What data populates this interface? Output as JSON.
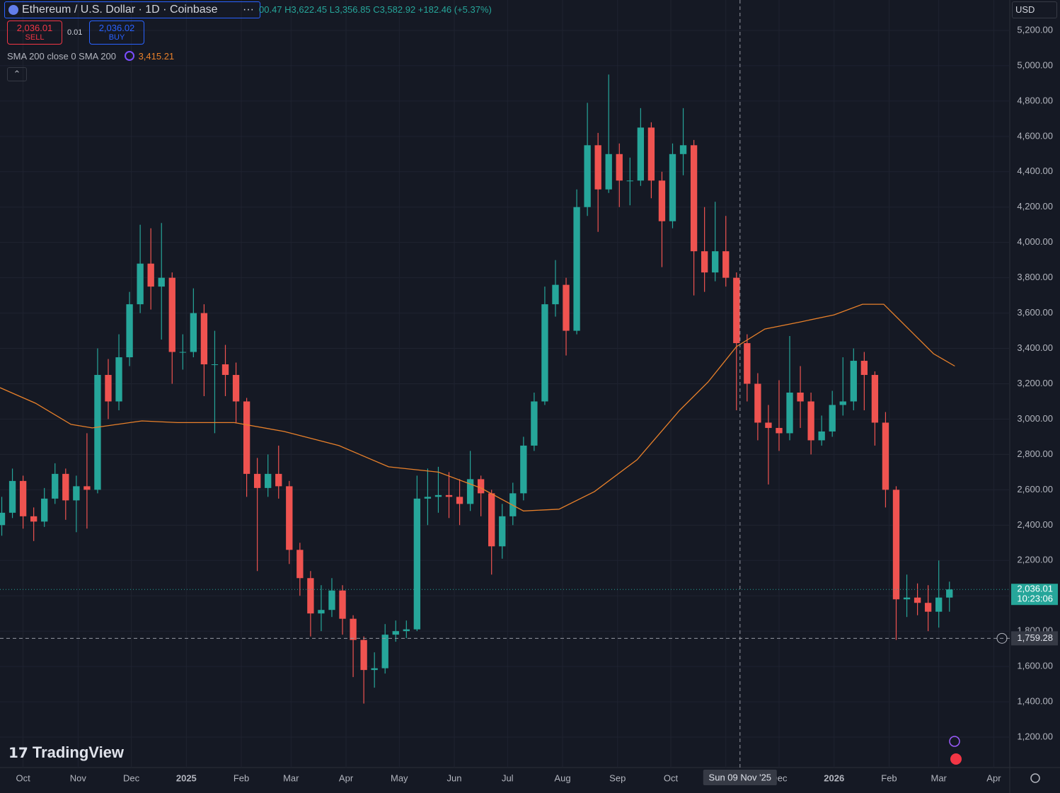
{
  "header": {
    "title": "Ethereum / U.S. Dollar · 1D · Coinbase",
    "ohlc": "00.47 H3,622.45 L3,356.85 C3,582.92 +182.46 (+5.37%)",
    "sell_price": "2,036.01",
    "sell_label": "SELL",
    "spread": "0.01",
    "buy_price": "2,036.02",
    "buy_label": "BUY",
    "indicator": "SMA 200 close 0 SMA 200",
    "indicator_value": "3,415.21",
    "currency": "USD",
    "logo": "TradingView"
  },
  "chart_data": {
    "type": "candlestick",
    "up_color": "#26a69a",
    "down_color": "#ef5350",
    "grid": true,
    "xlim": [
      -13,
      556
    ],
    "ylim": [
      1028,
      5372
    ],
    "xticks": [
      {
        "value": 0,
        "label": "Oct"
      },
      {
        "value": 31,
        "label": "Nov"
      },
      {
        "value": 61,
        "label": "Dec"
      },
      {
        "value": 92,
        "label": "2025"
      },
      {
        "value": 123,
        "label": "Feb"
      },
      {
        "value": 151,
        "label": "Mar"
      },
      {
        "value": 182,
        "label": "Apr"
      },
      {
        "value": 212,
        "label": "May"
      },
      {
        "value": 243,
        "label": "Jun"
      },
      {
        "value": 273,
        "label": "Jul"
      },
      {
        "value": 304,
        "label": "Aug"
      },
      {
        "value": 335,
        "label": "Sep"
      },
      {
        "value": 365,
        "label": "Oct"
      },
      {
        "value": 396,
        "label": "Nov"
      },
      {
        "value": 426,
        "label": "Dec"
      },
      {
        "value": 457,
        "label": "2026"
      },
      {
        "value": 488,
        "label": "Feb"
      },
      {
        "value": 516,
        "label": "Mar"
      },
      {
        "value": 547,
        "label": "Apr"
      }
    ],
    "yticks": [
      {
        "value": 1200,
        "label": "1,200.00"
      },
      {
        "value": 1400,
        "label": "1,400.00"
      },
      {
        "value": 1600,
        "label": "1,600.00"
      },
      {
        "value": 1800,
        "label": "1,800.00"
      },
      {
        "value": 2000,
        "label": "2,000.00"
      },
      {
        "value": 2200,
        "label": "2,200.00"
      },
      {
        "value": 2400,
        "label": "2,400.00"
      },
      {
        "value": 2600,
        "label": "2,600.00"
      },
      {
        "value": 2800,
        "label": "2,800.00"
      },
      {
        "value": 3000,
        "label": "3,000.00"
      },
      {
        "value": 3200,
        "label": "3,200.00"
      },
      {
        "value": 3400,
        "label": "3,400.00"
      },
      {
        "value": 3600,
        "label": "3,600.00"
      },
      {
        "value": 3800,
        "label": "3,800.00"
      },
      {
        "value": 4000,
        "label": "4,000.00"
      },
      {
        "value": 4200,
        "label": "4,200.00"
      },
      {
        "value": 4400,
        "label": "4,400.00"
      },
      {
        "value": 4600,
        "label": "4,600.00"
      },
      {
        "value": 4800,
        "label": "4,800.00"
      },
      {
        "value": 5000,
        "label": "5,000.00"
      },
      {
        "value": 5200,
        "label": "5,200.00"
      }
    ],
    "x": [
      -12,
      -6,
      0,
      6,
      12,
      18,
      24,
      30,
      36,
      42,
      48,
      54,
      60,
      66,
      72,
      78,
      84,
      90,
      96,
      102,
      108,
      114,
      120,
      126,
      132,
      138,
      144,
      150,
      156,
      162,
      168,
      174,
      180,
      186,
      192,
      198,
      204,
      210,
      216,
      222,
      228,
      234,
      240,
      246,
      252,
      258,
      264,
      270,
      276,
      282,
      288,
      294,
      300,
      306,
      312,
      318,
      324,
      330,
      336,
      342,
      348,
      354,
      360,
      366,
      372,
      378,
      384,
      390,
      396,
      402,
      408,
      414,
      420,
      426,
      432,
      438,
      444,
      450,
      456,
      462,
      468,
      474,
      480,
      486,
      492,
      498,
      504,
      510,
      516,
      522
    ],
    "open": [
      2400,
      2470,
      2650,
      2450,
      2420,
      2550,
      2690,
      2540,
      2620,
      2600,
      3250,
      3100,
      3350,
      3650,
      3880,
      3750,
      3800,
      3380,
      3380,
      3600,
      3310,
      3310,
      3250,
      3100,
      2690,
      2610,
      2690,
      2620,
      2260,
      2100,
      1900,
      1920,
      2030,
      1870,
      1750,
      1580,
      1590,
      1780,
      1800,
      1810,
      2550,
      2560,
      2570,
      2560,
      2520,
      2660,
      2580,
      2280,
      2450,
      2580,
      2850,
      3100,
      3650,
      3760,
      3500,
      4200,
      4550,
      4300,
      4500,
      4350,
      4350,
      4650,
      4350,
      4120,
      4500,
      4550,
      3950,
      3830,
      3950,
      3800,
      3430,
      3200,
      2980,
      2950,
      2920,
      3150,
      3100,
      2880,
      2930,
      3080,
      3100,
      3330,
      3250,
      2980,
      2600,
      1980,
      1990,
      1960,
      1910,
      1990
    ],
    "high": [
      2560,
      2720,
      2680,
      2500,
      2610,
      2750,
      2720,
      2680,
      2920,
      3400,
      3340,
      3480,
      3720,
      4100,
      4080,
      4110,
      3830,
      3480,
      3740,
      3650,
      3500,
      3420,
      3320,
      3120,
      2780,
      2800,
      2850,
      2650,
      2300,
      2140,
      2060,
      2100,
      2060,
      1890,
      1770,
      1680,
      1840,
      1860,
      1860,
      2680,
      2720,
      2730,
      2700,
      2660,
      2820,
      2680,
      2600,
      2520,
      2640,
      2900,
      3150,
      3750,
      3900,
      3800,
      4300,
      4790,
      4620,
      4950,
      4560,
      4480,
      4760,
      4680,
      4400,
      4560,
      4760,
      4580,
      4200,
      4230,
      4150,
      3830,
      3480,
      3260,
      3080,
      3220,
      3470,
      3300,
      3150,
      3020,
      3160,
      3350,
      3400,
      3380,
      3270,
      3040,
      2620,
      2120,
      2070,
      2060,
      2200,
      2080
    ],
    "low": [
      2340,
      2440,
      2380,
      2310,
      2390,
      2520,
      2430,
      2360,
      2380,
      2580,
      3000,
      3050,
      3300,
      3600,
      3620,
      3450,
      3200,
      3280,
      3350,
      3130,
      2920,
      3130,
      2980,
      2560,
      2140,
      2560,
      2550,
      2180,
      2000,
      1770,
      1800,
      1880,
      1780,
      1540,
      1390,
      1480,
      1560,
      1740,
      1760,
      1800,
      2400,
      2470,
      2440,
      2400,
      2480,
      2450,
      2120,
      2210,
      2400,
      2540,
      2820,
      3080,
      3580,
      3360,
      3480,
      4150,
      4060,
      4280,
      4200,
      4210,
      4320,
      4250,
      3860,
      4080,
      4380,
      3700,
      3720,
      3780,
      3750,
      3050,
      3100,
      2880,
      2630,
      2820,
      2880,
      2950,
      2800,
      2850,
      2900,
      3020,
      3050,
      3050,
      2850,
      2500,
      1750,
      1880,
      1890,
      1800,
      1820,
      1910
    ],
    "close": [
      2470,
      2650,
      2450,
      2420,
      2550,
      2690,
      2540,
      2620,
      2600,
      3250,
      3100,
      3350,
      3650,
      3880,
      3750,
      3800,
      3380,
      3380,
      3600,
      3310,
      3310,
      3250,
      3100,
      2690,
      2610,
      2690,
      2620,
      2260,
      2100,
      1900,
      1920,
      2030,
      1870,
      1750,
      1580,
      1590,
      1780,
      1800,
      1810,
      2550,
      2560,
      2570,
      2560,
      2520,
      2660,
      2580,
      2280,
      2450,
      2580,
      2850,
      3100,
      3650,
      3760,
      3500,
      4200,
      4550,
      4300,
      4500,
      4350,
      4350,
      4650,
      4350,
      4120,
      4500,
      4550,
      3950,
      3830,
      3950,
      3800,
      3430,
      3200,
      2980,
      2950,
      2920,
      3150,
      3100,
      2880,
      2930,
      3080,
      3100,
      3330,
      3250,
      2980,
      2600,
      1980,
      1990,
      1960,
      1910,
      1990,
      2036
    ],
    "sma": {
      "color": "#e8802a",
      "x": [
        -13,
        7,
        27,
        39,
        67,
        87,
        119,
        147,
        178,
        206,
        234,
        258,
        282,
        302,
        322,
        346,
        370,
        386,
        402,
        418,
        438,
        457,
        473,
        485,
        501,
        513,
        525
      ],
      "values": [
        3178,
        3090,
        2970,
        2950,
        2990,
        2980,
        2980,
        2930,
        2850,
        2730,
        2700,
        2610,
        2480,
        2490,
        2590,
        2770,
        3050,
        3210,
        3410,
        3510,
        3550,
        3590,
        3650,
        3650,
        3490,
        3370,
        3300
      ]
    },
    "last_price": {
      "value": 2036.01,
      "label": "2,036.01"
    },
    "countdown": "10:23:06",
    "crosshair": {
      "x": 404,
      "date_label": "Sun 09 Nov '25",
      "price": {
        "value": 1759.28,
        "label": "1,759.28"
      }
    }
  }
}
